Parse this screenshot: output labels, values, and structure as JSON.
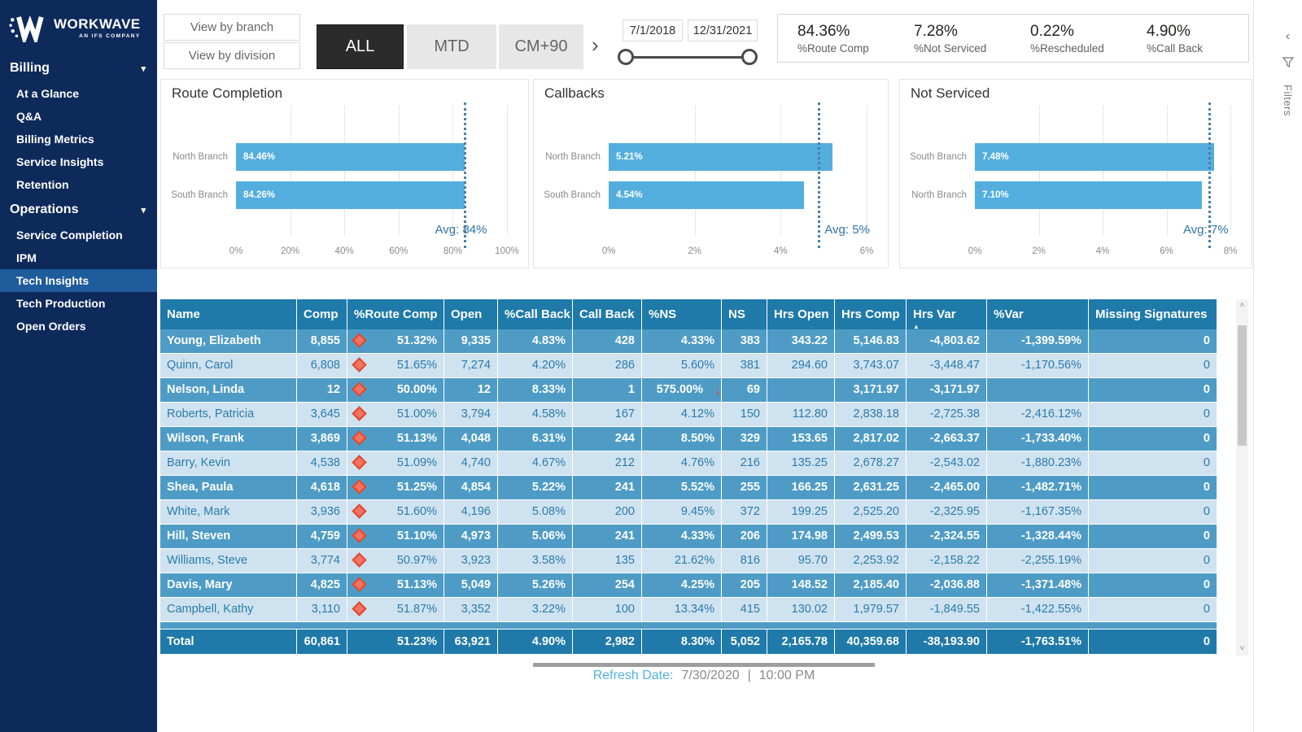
{
  "sidebar": {
    "logo": {
      "brand": "WORKWAVE",
      "sub": "AN IFS COMPANY"
    },
    "sections": [
      {
        "label": "Billing",
        "items": [
          "At a Glance",
          "Q&A",
          "Billing Metrics",
          "Service Insights",
          "Retention"
        ]
      },
      {
        "label": "Operations",
        "items": [
          "Service Completion",
          "IPM",
          "Tech Insights",
          "Tech Production",
          "Open Orders"
        ]
      }
    ],
    "active_item": "Tech Insights"
  },
  "topbar": {
    "view_buttons": [
      "View by branch",
      "View by division"
    ],
    "period_buttons": [
      {
        "label": "ALL",
        "active": true
      },
      {
        "label": "MTD",
        "active": false
      },
      {
        "label": "CM+90",
        "active": false
      }
    ],
    "date_from": "7/1/2018",
    "date_to": "12/31/2021",
    "kpis": [
      {
        "value": "84.36%",
        "label": "%Route Comp"
      },
      {
        "value": "7.28%",
        "label": "%Not Serviced"
      },
      {
        "value": "0.22%",
        "label": "%Rescheduled"
      },
      {
        "value": "4.90%",
        "label": "%Call Back"
      }
    ]
  },
  "icons": {
    "forward_chevron": "›",
    "collapse_chevron": "‹",
    "section_chevron": "▾",
    "sort_ascending": "▲",
    "ns_down_arrow": "↓",
    "scroll_up": "˄",
    "scroll_down": "˅"
  },
  "chart_data": [
    {
      "type": "bar",
      "orientation": "horizontal",
      "title": "Route Completion",
      "categories": [
        "North Branch",
        "South Branch"
      ],
      "values": [
        84.46,
        84.26
      ],
      "labels": [
        "84.46%",
        "84.26%"
      ],
      "xlim": [
        0,
        100
      ],
      "xticks": [
        "0%",
        "20%",
        "40%",
        "60%",
        "80%",
        "100%"
      ],
      "grid": true,
      "avg_line": {
        "value": 84,
        "label": "Avg: 84%",
        "side": "center"
      }
    },
    {
      "type": "bar",
      "orientation": "horizontal",
      "title": "Callbacks",
      "categories": [
        "North Branch",
        "South Branch"
      ],
      "values": [
        5.21,
        4.54
      ],
      "labels": [
        "5.21%",
        "4.54%"
      ],
      "xlim": [
        0,
        6
      ],
      "xticks": [
        "0%",
        "2%",
        "4%",
        "6%"
      ],
      "grid": true,
      "avg_line": {
        "value": 4.87,
        "label": "Avg: 5%",
        "side": "right"
      }
    },
    {
      "type": "bar",
      "orientation": "horizontal",
      "title": "Not Serviced",
      "categories": [
        "South Branch",
        "North Branch"
      ],
      "values": [
        7.48,
        7.1
      ],
      "labels": [
        "7.48%",
        "7.10%"
      ],
      "xlim": [
        0,
        8
      ],
      "xticks": [
        "0%",
        "2%",
        "4%",
        "6%",
        "8%"
      ],
      "grid": true,
      "avg_line": {
        "value": 7.3,
        "label": "Avg: 7%",
        "side": "center"
      }
    }
  ],
  "table": {
    "columns": [
      "Name",
      "Comp",
      "%Route Comp",
      "Open",
      "%Call Back",
      "Call Back",
      "%NS",
      "NS",
      "Hrs Open",
      "Hrs Comp",
      "Hrs Var",
      "%Var",
      "Missing Signatures"
    ],
    "sort_column": "Hrs Var",
    "rows": [
      {
        "cells": [
          "Young, Elizabeth",
          "8,855",
          "51.32%",
          "9,335",
          "4.83%",
          "428",
          "4.33%",
          "383",
          "343.22",
          "5,146.83",
          "-4,803.62",
          "-1,399.59%",
          "0"
        ],
        "diamond": true,
        "ns_arrow": false
      },
      {
        "cells": [
          "Quinn, Carol",
          "6,808",
          "51.65%",
          "7,274",
          "4.20%",
          "286",
          "5.60%",
          "381",
          "294.60",
          "3,743.07",
          "-3,448.47",
          "-1,170.56%",
          "0"
        ],
        "diamond": true,
        "ns_arrow": false
      },
      {
        "cells": [
          "Nelson, Linda",
          "12",
          "50.00%",
          "12",
          "8.33%",
          "1",
          "575.00%",
          "69",
          "",
          "3,171.97",
          "-3,171.97",
          "",
          "0"
        ],
        "diamond": true,
        "ns_arrow": true
      },
      {
        "cells": [
          "Roberts, Patricia",
          "3,645",
          "51.00%",
          "3,794",
          "4.58%",
          "167",
          "4.12%",
          "150",
          "112.80",
          "2,838.18",
          "-2,725.38",
          "-2,416.12%",
          "0"
        ],
        "diamond": true,
        "ns_arrow": false
      },
      {
        "cells": [
          "Wilson, Frank",
          "3,869",
          "51.13%",
          "4,048",
          "6.31%",
          "244",
          "8.50%",
          "329",
          "153.65",
          "2,817.02",
          "-2,663.37",
          "-1,733.40%",
          "0"
        ],
        "diamond": true,
        "ns_arrow": false
      },
      {
        "cells": [
          "Barry, Kevin",
          "4,538",
          "51.09%",
          "4,740",
          "4.67%",
          "212",
          "4.76%",
          "216",
          "135.25",
          "2,678.27",
          "-2,543.02",
          "-1,880.23%",
          "0"
        ],
        "diamond": true,
        "ns_arrow": false
      },
      {
        "cells": [
          "Shea, Paula",
          "4,618",
          "51.25%",
          "4,854",
          "5.22%",
          "241",
          "5.52%",
          "255",
          "166.25",
          "2,631.25",
          "-2,465.00",
          "-1,482.71%",
          "0"
        ],
        "diamond": true,
        "ns_arrow": false
      },
      {
        "cells": [
          "White, Mark",
          "3,936",
          "51.60%",
          "4,196",
          "5.08%",
          "200",
          "9.45%",
          "372",
          "199.25",
          "2,525.20",
          "-2,325.95",
          "-1,167.35%",
          "0"
        ],
        "diamond": true,
        "ns_arrow": false
      },
      {
        "cells": [
          "Hill, Steven",
          "4,759",
          "51.10%",
          "4,973",
          "5.06%",
          "241",
          "4.33%",
          "206",
          "174.98",
          "2,499.53",
          "-2,324.55",
          "-1,328.44%",
          "0"
        ],
        "diamond": true,
        "ns_arrow": false
      },
      {
        "cells": [
          "Williams, Steve",
          "3,774",
          "50.97%",
          "3,923",
          "3.58%",
          "135",
          "21.62%",
          "816",
          "95.70",
          "2,253.92",
          "-2,158.22",
          "-2,255.19%",
          "0"
        ],
        "diamond": true,
        "ns_arrow": false
      },
      {
        "cells": [
          "Davis, Mary",
          "4,825",
          "51.13%",
          "5,049",
          "5.26%",
          "254",
          "4.25%",
          "205",
          "148.52",
          "2,185.40",
          "-2,036.88",
          "-1,371.48%",
          "0"
        ],
        "diamond": true,
        "ns_arrow": false
      },
      {
        "cells": [
          "Campbell, Kathy",
          "3,110",
          "51.87%",
          "3,352",
          "3.22%",
          "100",
          "13.34%",
          "415",
          "130.02",
          "1,979.57",
          "-1,849.55",
          "-1,422.55%",
          "0"
        ],
        "diamond": true,
        "ns_arrow": false
      }
    ],
    "total": {
      "cells": [
        "Total",
        "60,861",
        "51.23%",
        "63,921",
        "4.90%",
        "2,982",
        "8.30%",
        "5,052",
        "2,165.78",
        "40,359.68",
        "-38,193.90",
        "-1,763.51%",
        "0"
      ]
    }
  },
  "footer": {
    "refresh_label": "Refresh Date:",
    "refresh_date": "7/30/2020",
    "refresh_sep": "|",
    "refresh_time": "10:00 PM"
  },
  "filters_rail": {
    "label": "Filters"
  },
  "colors": {
    "sidebar_bg": "#0E2A5B",
    "sidebar_active": "#1E5C9C",
    "table_header": "#1F7AA9",
    "row_dark": "#4E9CC6",
    "row_light": "#CFE2EF",
    "bar_blue": "#53AEDE",
    "avg_line": "#4A7FA5",
    "diamond": "#F4735E",
    "ns_arrow": "#E8472B",
    "refresh_label": "#4FB1E4"
  }
}
